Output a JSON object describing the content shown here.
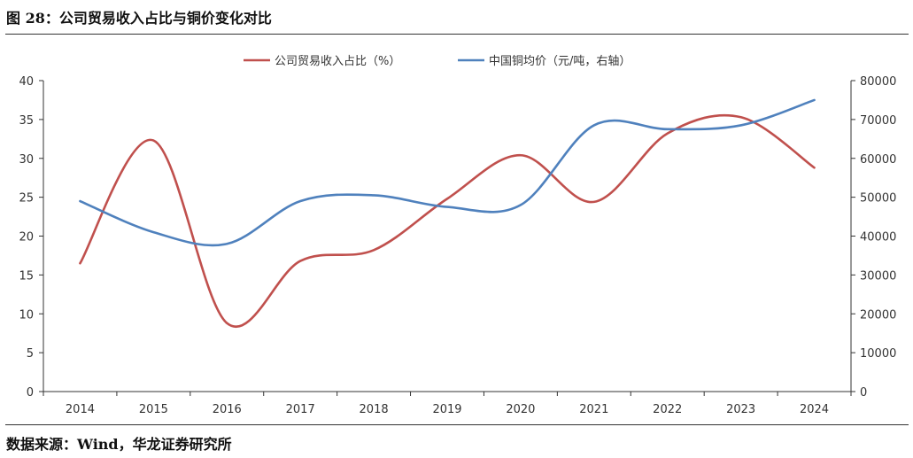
{
  "title": "图 28：公司贸易收入占比与铜价变化对比",
  "source": "数据来源：Wind，华龙证券研究所",
  "colors": {
    "series1": "#c0504d",
    "series2": "#4f81bd",
    "axis": "#333333"
  },
  "chart_data": {
    "type": "line",
    "title": "",
    "categories": [
      "2014",
      "2015",
      "2016",
      "2017",
      "2018",
      "2019",
      "2020",
      "2021",
      "2022",
      "2023",
      "2024"
    ],
    "series": [
      {
        "name": "公司贸易收入占比（%）",
        "axis": "left",
        "values": [
          16.5,
          32.3,
          8.8,
          16.8,
          18.2,
          24.8,
          30.4,
          24.4,
          33.2,
          35.3,
          28.8
        ]
      },
      {
        "name": "中国铜均价（元/吨，右轴）",
        "axis": "right",
        "values": [
          49000,
          41000,
          38000,
          49000,
          50500,
          47500,
          48000,
          68500,
          67500,
          68500,
          75000
        ]
      }
    ],
    "y_left": {
      "min": 0,
      "max": 40,
      "ticks": [
        "0",
        "5",
        "10",
        "15",
        "20",
        "25",
        "30",
        "35",
        "40"
      ]
    },
    "y_right": {
      "min": 0,
      "max": 80000,
      "ticks": [
        "0",
        "10000",
        "20000",
        "30000",
        "40000",
        "50000",
        "60000",
        "70000",
        "80000"
      ]
    },
    "grid": false,
    "legend_position": "top-center"
  }
}
